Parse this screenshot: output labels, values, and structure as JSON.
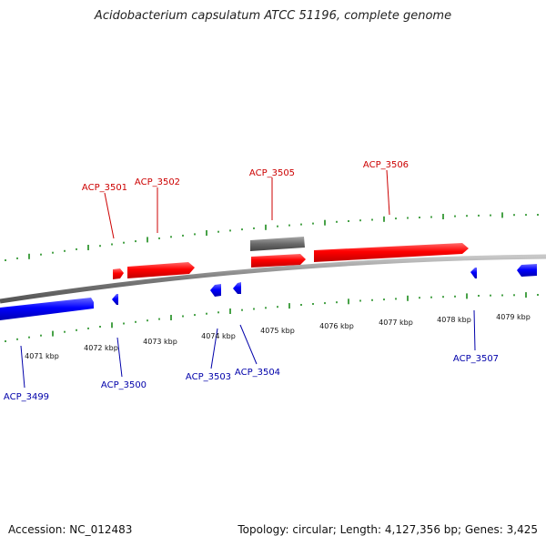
{
  "title": "Acidobacterium capsulatum ATCC 51196, complete genome",
  "footer": {
    "accession": "Accession: NC_012483",
    "summary": "Topology: circular; Length: 4,127,356 bp; Genes: 3,425"
  },
  "colors": {
    "forward_gene": "#ff0000",
    "reverse_gene": "#0000ff",
    "other_feature": "#666666",
    "backbone": "#808080",
    "ticks": "#1a8a1a",
    "forward_label": "#cc0000",
    "reverse_label": "#0000aa"
  },
  "scale_labels": [
    "4071 kbp",
    "4072 kbp",
    "4073 kbp",
    "4074 kbp",
    "4075 kbp",
    "4076 kbp",
    "4077 kbp",
    "4078 kbp",
    "4079 kbp"
  ],
  "forward_genes": [
    {
      "label": "ACP_3501"
    },
    {
      "label": "ACP_3502"
    },
    {
      "label": "ACP_3505"
    },
    {
      "label": "ACP_3506"
    }
  ],
  "reverse_genes": [
    {
      "label": "ACP_3499"
    },
    {
      "label": "ACP_3500"
    },
    {
      "label": "ACP_3503"
    },
    {
      "label": "ACP_3504"
    },
    {
      "label": "ACP_3507"
    }
  ]
}
